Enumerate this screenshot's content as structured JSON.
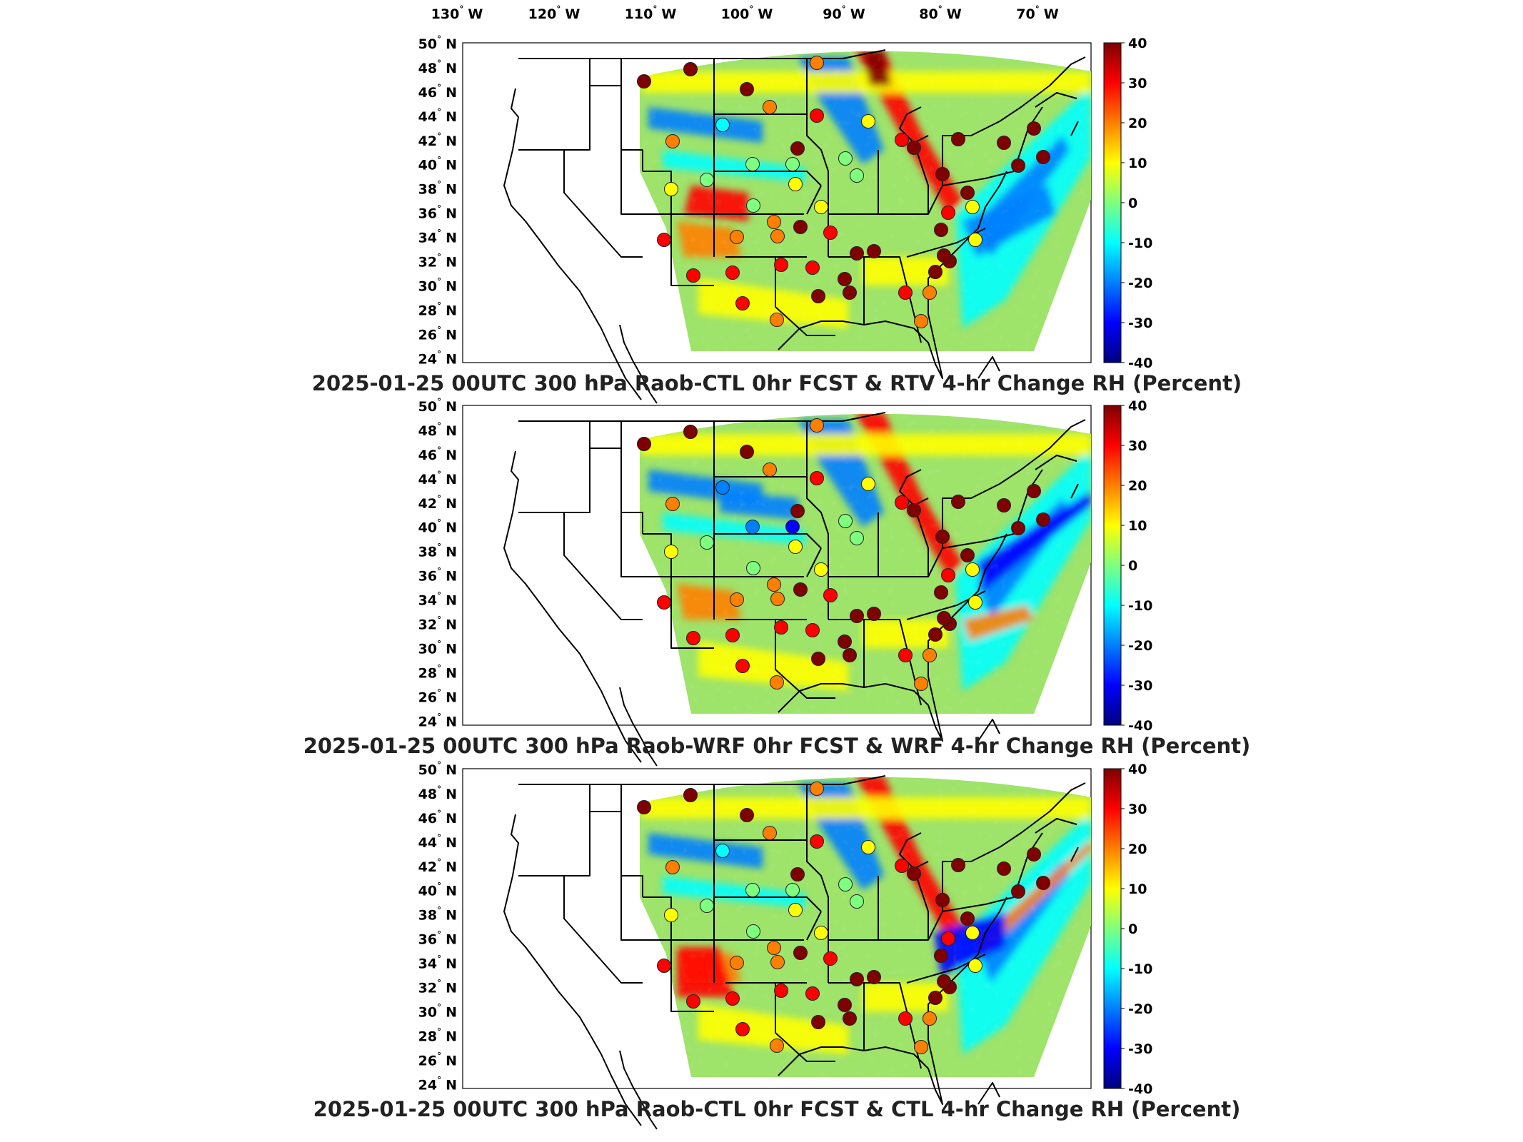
{
  "lon_ticks": [
    "130",
    "120",
    "110",
    "100",
    "90",
    "80",
    "70"
  ],
  "lon_hemi": "W",
  "lat_ticks": [
    "50",
    "48",
    "46",
    "44",
    "42",
    "40",
    "38",
    "36",
    "34",
    "32",
    "30",
    "28",
    "26",
    "24"
  ],
  "lat_hemi": "N",
  "deg": "°",
  "colorbar_ticks": [
    "40",
    "30",
    "20",
    "10",
    "0",
    "-10",
    "-20",
    "-30",
    "-40"
  ],
  "colors": {
    "m40": "#00007f",
    "m30": "#0000ff",
    "m20": "#007fff",
    "m10": "#00ffff",
    "zero": "#7fff7f",
    "p10": "#ffff00",
    "p20": "#ff7f00",
    "p30": "#ff0000",
    "p40": "#7f0000",
    "field_base": "#9ee36a"
  },
  "panels": [
    {
      "title": "2025-01-25 00UTC 300 hPa Raob-CTL 0hr FCST & RTV 4-hr Change RH (Percent)"
    },
    {
      "title": "2025-01-25 00UTC 300 hPa Raob-WRF 0hr FCST & WRF 4-hr Change RH (Percent)"
    },
    {
      "title": "2025-01-25 00UTC 300 hPa Raob-CTL 0hr FCST & CTL 4-hr Change RH (Percent)"
    }
  ]
}
